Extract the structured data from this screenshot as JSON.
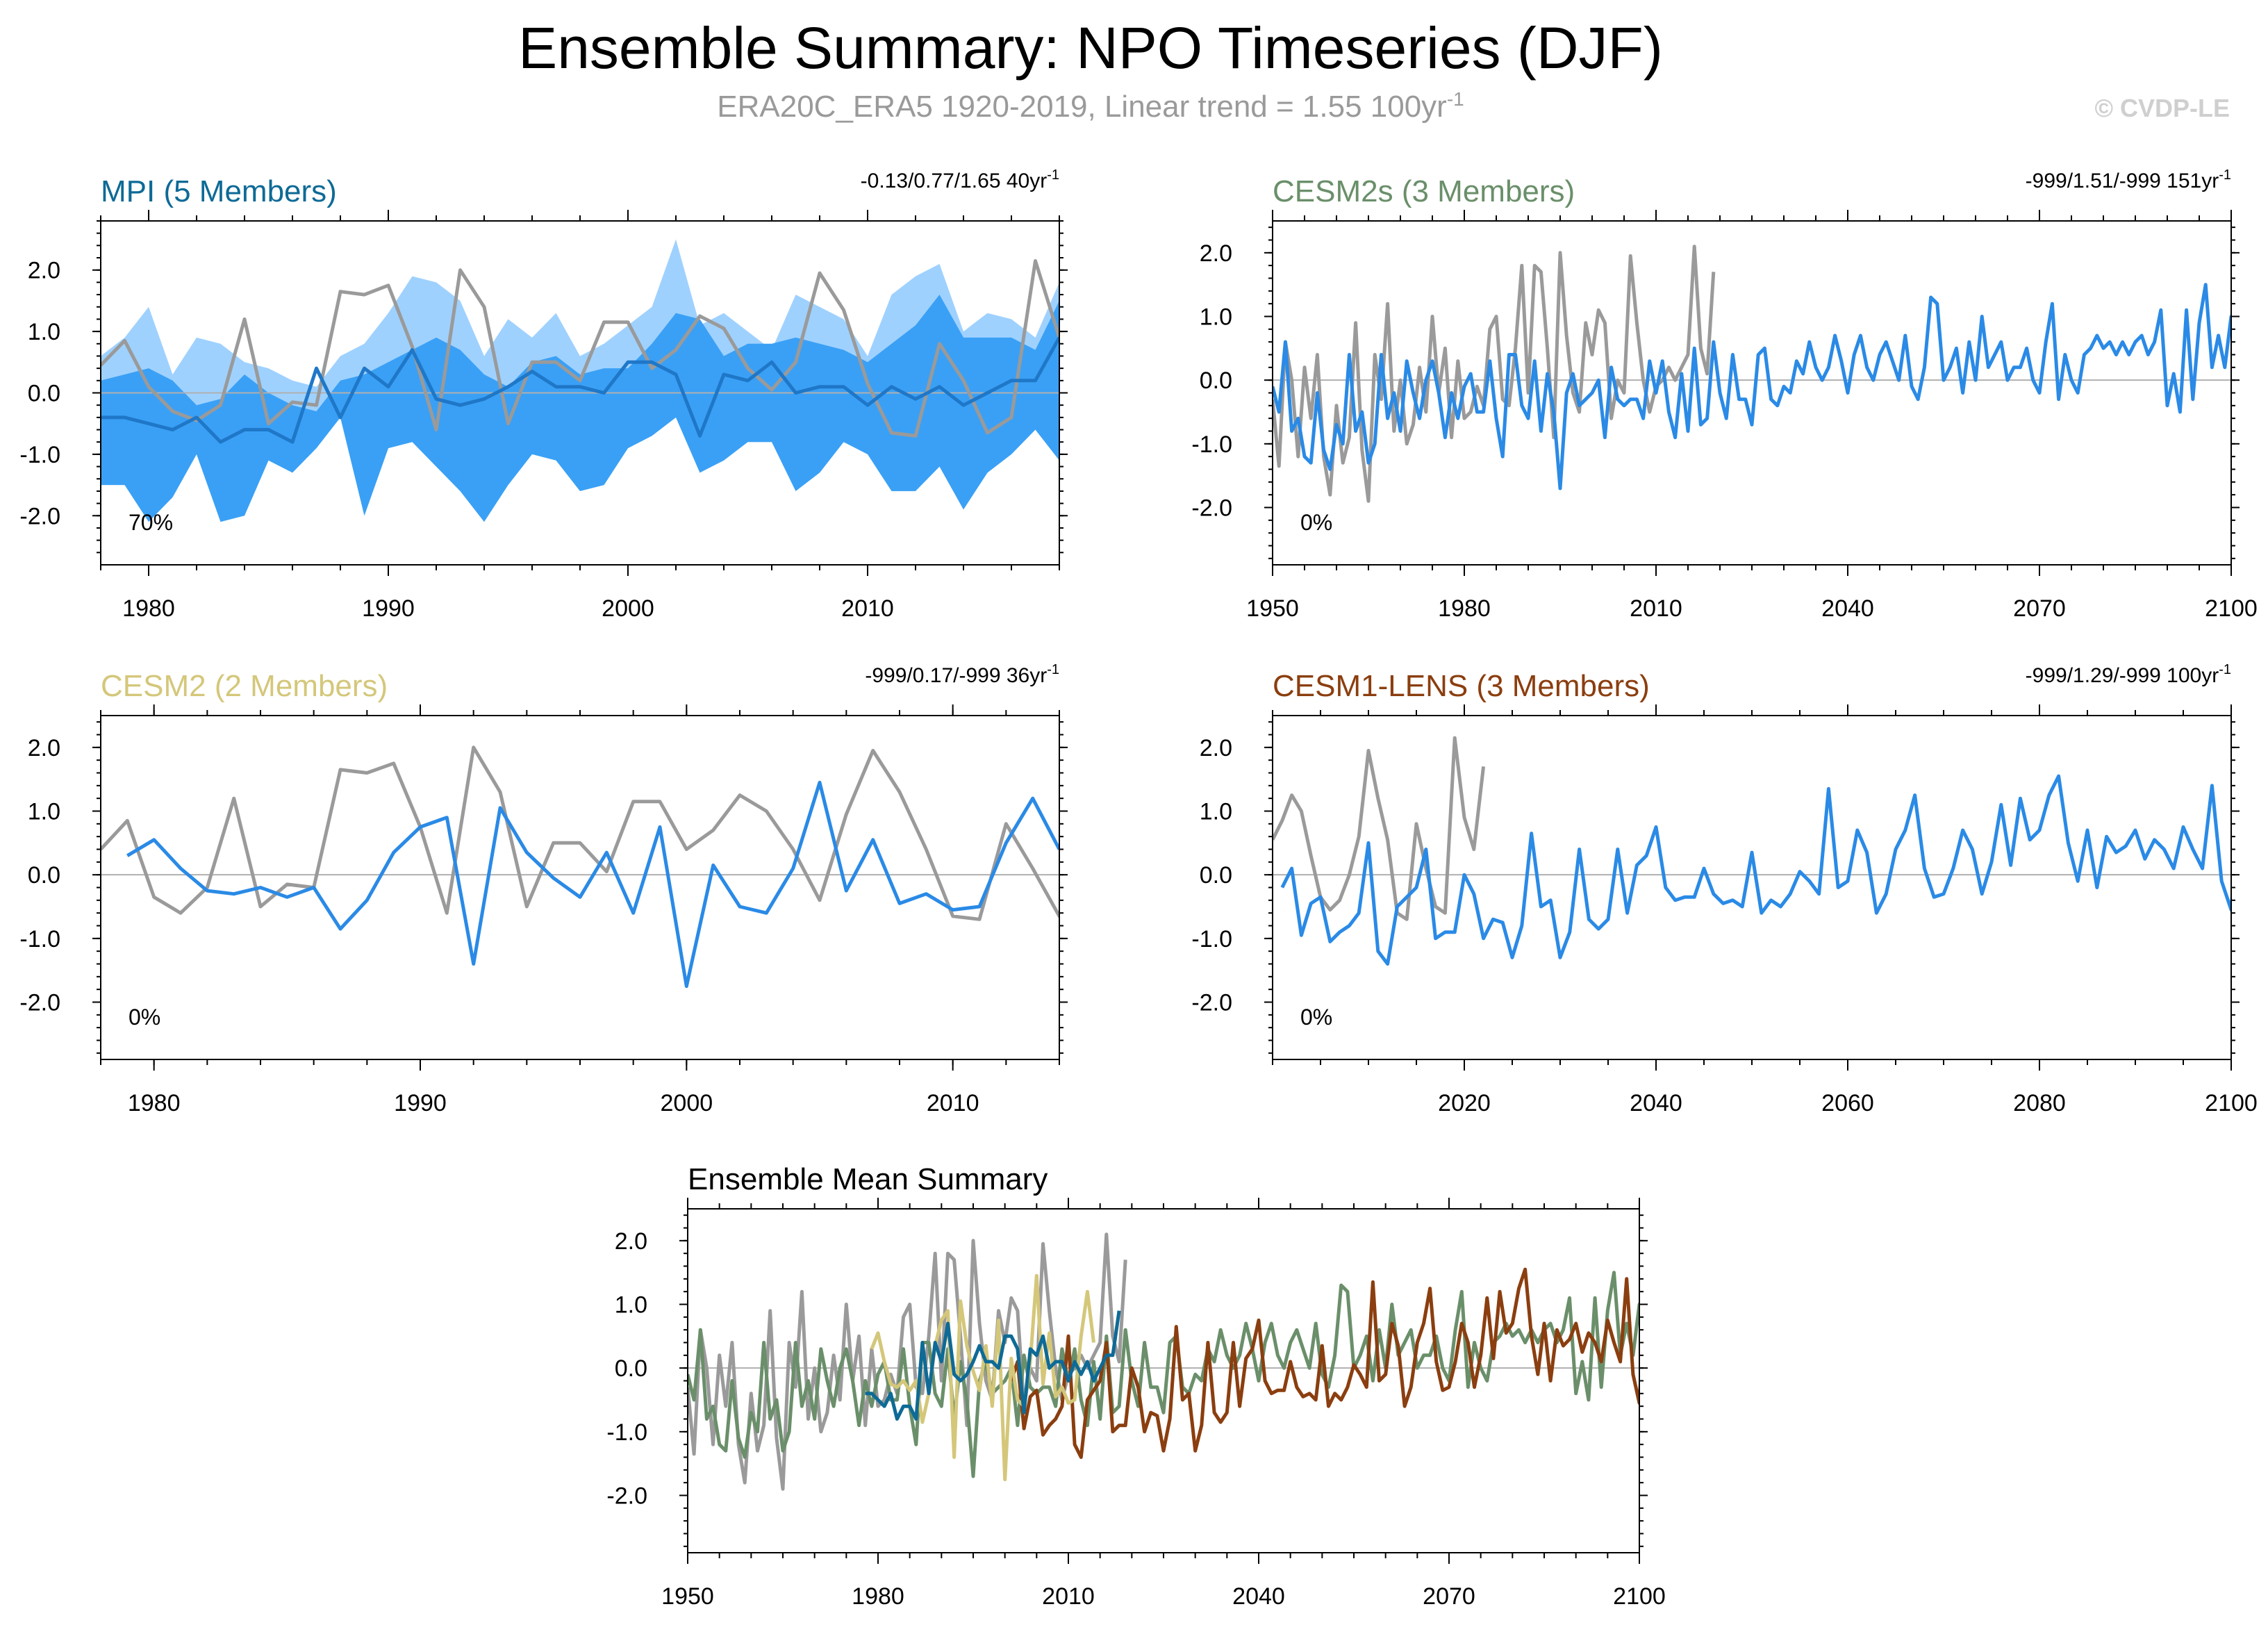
{
  "header": {
    "title": "Ensemble Summary: NPO Timeseries (DJF)",
    "subtitle": "ERA20C_ERA5 1920-2019, Linear trend = 1.55 100yr",
    "subtitle_sup": "-1",
    "copyright": "© CVDP-LE"
  },
  "colors": {
    "obs": "#9a9a9a",
    "member": "#2a8ae6",
    "mpi": "#0e6a96",
    "cesm2s": "#6a8f6a",
    "cesm2": "#d4c77a",
    "cesm1": "#8b3e0f",
    "band_outer": "#9fd1ff",
    "band_inner": "#3aa0f5",
    "axis": "#000000"
  },
  "chart_data": [
    {
      "id": "mpi",
      "type": "line",
      "title": "MPI (5 Members)",
      "stats": "-0.13/0.77/1.65 40yr",
      "stats_sup": "-1",
      "percent": "70%",
      "xlim": [
        1978,
        2018
      ],
      "ylim": [
        -2.8,
        2.8
      ],
      "xticks": [
        1980,
        1990,
        2000,
        2010
      ],
      "yticks": [
        -2.0,
        -1.0,
        0.0,
        1.0,
        2.0
      ],
      "ytick_labels": [
        "-2.0",
        "-1.0",
        "0.0",
        "1.0",
        "2.0"
      ],
      "obs": {
        "x0": 1978,
        "values": [
          0.45,
          0.85,
          0.1,
          -0.3,
          -0.45,
          -0.2,
          1.2,
          -0.5,
          -0.15,
          -0.2,
          1.65,
          1.6,
          1.75,
          0.75,
          -0.6,
          2.0,
          1.4,
          -0.5,
          0.5,
          0.5,
          0.2,
          1.15,
          1.15,
          0.4,
          0.7,
          1.25,
          1.05,
          0.4,
          0.05,
          0.5,
          1.95,
          1.35,
          0.15,
          -0.65,
          -0.7,
          0.8,
          0.2,
          -0.65,
          -0.4,
          2.15,
          0.9
        ]
      },
      "band_outer": {
        "x0": 1978,
        "upper": [
          0.6,
          0.9,
          1.4,
          0.3,
          0.9,
          0.8,
          0.5,
          0.4,
          0.2,
          0.1,
          0.6,
          0.8,
          1.3,
          1.9,
          1.8,
          1.5,
          0.6,
          1.2,
          0.9,
          1.3,
          0.6,
          0.8,
          1.1,
          1.4,
          2.5,
          1.1,
          1.3,
          1.0,
          0.7,
          1.6,
          1.4,
          1.2,
          0.6,
          1.6,
          1.9,
          2.1,
          1.0,
          1.3,
          1.2,
          0.9,
          1.8
        ],
        "lower": [
          -1.5,
          -1.5,
          -2.1,
          -1.7,
          -1.0,
          -2.1,
          -2.0,
          -1.1,
          -1.3,
          -0.9,
          -0.4,
          -2.0,
          -0.9,
          -0.8,
          -1.2,
          -1.6,
          -2.1,
          -1.5,
          -1.0,
          -1.1,
          -1.6,
          -1.5,
          -0.9,
          -0.7,
          -0.4,
          -1.3,
          -1.1,
          -0.8,
          -0.8,
          -1.6,
          -1.3,
          -0.8,
          -1.0,
          -1.6,
          -1.6,
          -1.2,
          -1.9,
          -1.3,
          -1.0,
          -0.6,
          -1.1
        ]
      },
      "band_inner": {
        "x0": 1978,
        "upper": [
          0.2,
          0.3,
          0.4,
          0.2,
          -0.2,
          -0.1,
          0.3,
          0.0,
          -0.2,
          -0.3,
          0.2,
          0.3,
          0.5,
          0.7,
          0.9,
          0.7,
          0.3,
          0.1,
          0.5,
          0.6,
          0.3,
          0.4,
          0.4,
          0.8,
          1.3,
          1.2,
          0.6,
          0.8,
          0.8,
          0.9,
          0.8,
          0.7,
          0.5,
          0.8,
          1.1,
          1.6,
          0.9,
          0.9,
          0.9,
          0.7,
          1.5
        ]
      },
      "mean": {
        "x0": 1978,
        "color": "#1f77c8",
        "values": [
          -0.4,
          -0.4,
          -0.5,
          -0.6,
          -0.4,
          -0.8,
          -0.6,
          -0.6,
          -0.8,
          0.4,
          -0.4,
          0.4,
          0.1,
          0.7,
          -0.1,
          -0.2,
          -0.1,
          0.1,
          0.35,
          0.1,
          0.1,
          0.0,
          0.5,
          0.5,
          0.3,
          -0.7,
          0.3,
          0.2,
          0.5,
          0.0,
          0.1,
          0.1,
          -0.2,
          0.1,
          -0.1,
          0.1,
          -0.2,
          0.0,
          0.2,
          0.2,
          0.9
        ]
      },
      "percent_pos": "bottom-left"
    },
    {
      "id": "cesm2s",
      "type": "line",
      "title": "CESM2s (3 Members)",
      "stats": "-999/1.51/-999 151yr",
      "stats_sup": "-1",
      "percent": "0%",
      "xlim": [
        1950,
        2100
      ],
      "ylim": [
        -2.9,
        2.5
      ],
      "xticks": [
        1950,
        1980,
        2010,
        2040,
        2070,
        2100
      ],
      "yticks": [
        -2.0,
        -1.0,
        0.0,
        1.0,
        2.0
      ],
      "ytick_labels": [
        "-2.0",
        "-1.0",
        "0.0",
        "1.0",
        "2.0"
      ],
      "obs": {
        "x0": 1950,
        "values": [
          -0.3,
          -1.35,
          0.6,
          0.0,
          -1.2,
          0.2,
          -0.6,
          0.4,
          -1.2,
          -1.8,
          -0.4,
          -1.3,
          -0.9,
          0.9,
          -1.1,
          -1.9,
          0.4,
          -0.3,
          1.2,
          -0.8,
          0.0,
          -1.0,
          -0.7,
          0.2,
          -0.5,
          1.0,
          -0.2,
          0.5,
          -0.9,
          0.3,
          -0.6,
          -0.5,
          -0.1,
          -0.4,
          0.8,
          1.0,
          -0.3,
          -0.4,
          0.5,
          1.8,
          -0.2,
          1.8,
          1.7,
          0.5,
          -0.9,
          2.0,
          0.7,
          -0.2,
          -0.5,
          0.9,
          0.4,
          1.1,
          0.9,
          -0.6,
          0.0,
          -0.2,
          1.95,
          0.9,
          0.0,
          -0.5,
          -0.1,
          0.0,
          0.2,
          0.0,
          0.2,
          0.4,
          2.1,
          0.5,
          0.1,
          1.7
        ]
      },
      "mean": {
        "x0": 1950,
        "color": "#2a8ae6",
        "values": [
          -0.1,
          -0.5,
          0.6,
          -0.8,
          -0.6,
          -1.2,
          -1.3,
          -0.2,
          -1.1,
          -1.4,
          -0.7,
          -1.0,
          0.4,
          -0.8,
          -0.5,
          -1.3,
          -1.0,
          0.4,
          -0.6,
          -0.2,
          -0.8,
          0.3,
          -0.2,
          -0.6,
          0.0,
          0.3,
          -0.2,
          -0.9,
          -0.2,
          -0.6,
          -0.1,
          0.1,
          -0.5,
          -0.5,
          0.3,
          -0.6,
          -1.2,
          0.4,
          0.4,
          -0.4,
          -0.6,
          0.3,
          -0.8,
          0.1,
          -0.5,
          -1.7,
          -0.2,
          0.1,
          -0.4,
          -0.3,
          -0.2,
          0.0,
          -0.9,
          0.2,
          -0.3,
          -0.4,
          -0.3,
          -0.3,
          -0.6,
          0.3,
          -0.2,
          0.3,
          -0.5,
          -0.9,
          0.1,
          -0.8,
          0.5,
          -0.7,
          -0.6,
          0.6,
          -0.2,
          -0.6,
          0.4,
          -0.3,
          -0.3,
          -0.7,
          0.4,
          0.5,
          -0.3,
          -0.4,
          -0.1,
          -0.2,
          0.3,
          0.1,
          0.6,
          0.2,
          0.0,
          0.2,
          0.7,
          0.3,
          -0.2,
          0.4,
          0.7,
          0.2,
          0.0,
          0.4,
          0.6,
          0.3,
          0.0,
          0.7,
          -0.1,
          -0.3,
          0.2,
          1.3,
          1.2,
          0.0,
          0.2,
          0.5,
          -0.2,
          0.6,
          0.0,
          1.0,
          0.2,
          0.4,
          0.6,
          0.0,
          0.2,
          0.2,
          0.5,
          0.0,
          -0.2,
          0.6,
          1.2,
          -0.3,
          0.4,
          0.0,
          -0.2,
          0.4,
          0.5,
          0.7,
          0.5,
          0.6,
          0.4,
          0.6,
          0.4,
          0.6,
          0.7,
          0.4,
          0.6,
          1.1,
          -0.4,
          0.1,
          -0.5,
          1.1,
          -0.3,
          0.9,
          1.5,
          0.2,
          0.7,
          0.2,
          1.0,
          -0.3,
          0.8,
          1.3,
          0.5,
          0.3,
          0.9,
          1.3,
          0.3,
          0.6,
          0.9,
          0.5,
          1.4,
          0.3,
          0.6,
          0.8,
          0.5,
          1.1,
          0.3,
          0.5,
          1.3,
          1.0,
          0.3,
          1.3,
          0.8,
          0.6,
          0.5,
          1.0,
          0.3,
          0.6,
          0.9,
          2.0,
          0.8,
          0.3,
          0.6,
          0.4,
          0.7,
          1.1,
          0.7,
          0.6,
          0.8,
          0.5,
          1.0,
          0.6,
          0.8,
          0.6,
          0.6
        ]
      },
      "percent_pos": "bottom-left"
    },
    {
      "id": "cesm2",
      "type": "line",
      "title": "CESM2 (2 Members)",
      "stats": "-999/0.17/-999 36yr",
      "stats_sup": "-1",
      "percent": "0%",
      "xlim": [
        1978,
        2014
      ],
      "ylim": [
        -2.9,
        2.5
      ],
      "xticks": [
        1980,
        1990,
        2000,
        2010
      ],
      "yticks": [
        -2.0,
        -1.0,
        0.0,
        1.0,
        2.0
      ],
      "ytick_labels": [
        "-2.0",
        "-1.0",
        "0.0",
        "1.0",
        "2.0"
      ],
      "obs": {
        "x0": 1978,
        "values": [
          0.4,
          0.85,
          -0.35,
          -0.6,
          -0.2,
          1.2,
          -0.5,
          -0.15,
          -0.2,
          1.65,
          1.6,
          1.75,
          0.75,
          -0.6,
          2.0,
          1.3,
          -0.5,
          0.5,
          0.5,
          0.05,
          1.15,
          1.15,
          0.4,
          0.7,
          1.25,
          1.0,
          0.4,
          -0.4,
          0.95,
          1.95,
          1.3,
          0.4,
          -0.65,
          -0.7,
          0.8,
          0.1,
          -0.65,
          -0.5
        ]
      },
      "mean": {
        "x0": 1979,
        "color": "#2a8ae6",
        "values": [
          0.3,
          0.55,
          0.1,
          -0.25,
          -0.3,
          -0.2,
          -0.35,
          -0.2,
          -0.85,
          -0.4,
          0.35,
          0.75,
          0.9,
          -1.4,
          1.05,
          0.35,
          -0.05,
          -0.35,
          0.35,
          -0.6,
          0.75,
          -1.75,
          0.15,
          -0.5,
          -0.6,
          0.1,
          1.45,
          -0.25,
          0.55,
          -0.45,
          -0.3,
          -0.55,
          -0.5,
          0.5,
          1.2,
          0.4
        ]
      },
      "percent_pos": "bottom-left"
    },
    {
      "id": "cesm1",
      "type": "line",
      "title": "CESM1-LENS (3 Members)",
      "stats": "-999/1.29/-999 100yr",
      "stats_sup": "-1",
      "percent": "0%",
      "xlim": [
        2000,
        2100
      ],
      "ylim": [
        -2.9,
        2.5
      ],
      "xticks": [
        2020,
        2040,
        2060,
        2080,
        2100
      ],
      "yticks": [
        -2.0,
        -1.0,
        0.0,
        1.0,
        2.0
      ],
      "ytick_labels": [
        "-2.0",
        "-1.0",
        "0.0",
        "1.0",
        "2.0"
      ],
      "obs": {
        "x0": 2000,
        "values": [
          0.55,
          0.85,
          1.25,
          1.0,
          0.3,
          -0.35,
          -0.55,
          -0.4,
          0.0,
          0.6,
          1.95,
          1.2,
          0.55,
          -0.6,
          -0.7,
          0.8,
          0.1,
          -0.5,
          -0.6,
          2.15,
          0.9,
          0.4,
          1.7
        ]
      },
      "mean": {
        "x0": 2001,
        "color": "#2a8ae6",
        "values": [
          -0.2,
          0.1,
          -0.95,
          -0.45,
          -0.35,
          -1.05,
          -0.9,
          -0.8,
          -0.6,
          0.5,
          -1.2,
          -1.4,
          -0.5,
          -0.35,
          -0.2,
          0.4,
          -1.0,
          -0.9,
          -0.9,
          0.0,
          -0.3,
          -1.0,
          -0.7,
          -0.75,
          -1.3,
          -0.8,
          0.65,
          -0.5,
          -0.4,
          -1.3,
          -0.9,
          0.4,
          -0.7,
          -0.85,
          -0.7,
          0.4,
          -0.6,
          0.15,
          0.3,
          0.75,
          -0.2,
          -0.4,
          -0.35,
          -0.35,
          0.1,
          -0.3,
          -0.45,
          -0.4,
          -0.5,
          0.35,
          -0.6,
          -0.4,
          -0.5,
          -0.3,
          0.05,
          -0.1,
          -0.3,
          1.35,
          -0.2,
          -0.1,
          0.7,
          0.35,
          -0.6,
          -0.3,
          0.4,
          0.7,
          1.25,
          0.1,
          -0.35,
          -0.3,
          0.1,
          0.7,
          0.4,
          -0.3,
          0.2,
          1.1,
          0.15,
          1.2,
          0.55,
          0.7,
          1.25,
          1.55,
          0.5,
          -0.1,
          0.7,
          -0.2,
          0.6,
          0.35,
          0.45,
          0.7,
          0.25,
          0.55,
          0.4,
          0.1,
          0.75,
          0.4,
          0.1,
          1.4,
          -0.1,
          -0.55,
          1.4
        ]
      },
      "percent_pos": "bottom-left"
    },
    {
      "id": "summary",
      "type": "line",
      "title": "Ensemble Mean Summary",
      "xlim": [
        1950,
        2100
      ],
      "ylim": [
        -2.9,
        2.5
      ],
      "xticks": [
        1950,
        1980,
        2010,
        2040,
        2070,
        2100
      ],
      "yticks": [
        -2.0,
        -1.0,
        0.0,
        1.0,
        2.0
      ],
      "ytick_labels": [
        "-2.0",
        "-1.0",
        "0.0",
        "1.0",
        "2.0"
      ],
      "series": [
        {
          "name": "Observations",
          "ref": "cesm2s.obs",
          "color": "#9a9a9a"
        },
        {
          "name": "CESM2s",
          "ref": "cesm2s.mean",
          "color": "#6a8f6a"
        },
        {
          "name": "CESM1-LENS",
          "ref": "cesm1.mean",
          "color": "#8b3e0f"
        },
        {
          "name": "CESM2",
          "ref": "cesm2.mean",
          "color": "#d4c77a"
        },
        {
          "name": "MPI",
          "ref": "mpi.mean",
          "color": "#0e6a96"
        }
      ]
    }
  ]
}
